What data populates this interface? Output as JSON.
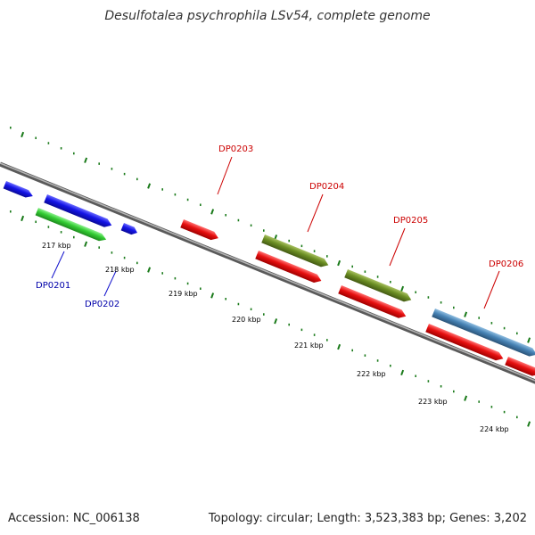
{
  "title": "Desulfotalea psychrophila LSv54, complete genome",
  "footer": {
    "accession_label": "Accession: NC_006138",
    "topology_label": "Topology: circular; Length: 3,523,383 bp; Genes: 3,202"
  },
  "colors": {
    "backbone": "#8a8a8a",
    "tick": "#1a7a1a",
    "blue_gene": "#1414e6",
    "green_gene": "#33cc33",
    "red_gene": "#e60f0f",
    "olive_gene": "#6b8e23",
    "steelblue_gene": "#4682b4",
    "label_red": "#cc0000",
    "label_blue": "#0000aa"
  },
  "kbp_labels": [
    "217 kbp",
    "218 kbp",
    "219 kbp",
    "220 kbp",
    "221 kbp",
    "222 kbp",
    "223 kbp",
    "224 kbp"
  ],
  "gene_labels": {
    "DP0201": "DP0201",
    "DP0202": "DP0202",
    "DP0203": "DP0203",
    "DP0204": "DP0204",
    "DP0205": "DP0205",
    "DP0206": "DP0206"
  }
}
